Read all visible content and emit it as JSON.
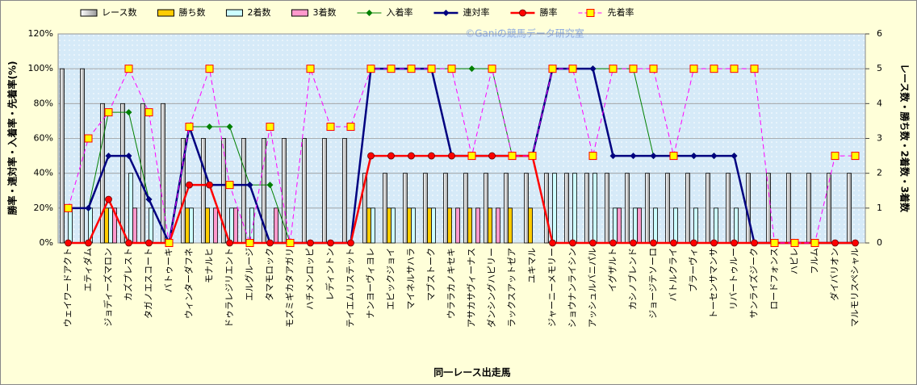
{
  "chart_data": {
    "type": "combo",
    "watermark": "©Ganiの競馬データ研究室",
    "xlabel": "同一レース出走馬",
    "ylabel": "勝率・連対率・入着率・先着率(%)",
    "y2label": "レース数・勝ち数・2着数・3着数",
    "categories": [
      "ウェイワードアクト",
      "エティダム",
      "ジョディーズマロン",
      "カズプレスト",
      "タガノエスコート",
      "バトゥーキ",
      "ウィンターダフネ",
      "モナルヒ",
      "ドゥラレジリエント",
      "エルグルージ",
      "タマモロック",
      "モズミギカタアガリ",
      "ハチメンロッピ",
      "レディントン",
      "テイエムリステット",
      "ナンヨーヴィヨレ",
      "エピックジョイ",
      "マイネルサハラ",
      "マブストーク",
      "ウララカノキセキ",
      "アサカサヴィーナス",
      "ダンシングハピリー",
      "ラックスアットゼア",
      "ユキマル",
      "ジャーニーメモリー",
      "ショウナンライシン",
      "アッシュルバニパル",
      "イグザルト",
      "カシノブレンド",
      "ジョージテソーロ",
      "バトルクライ",
      "ブラーヴィ",
      "トーセンサマンサ",
      "リバートゥルー",
      "サンライズジーク",
      "ロードフォンス",
      "ハピレ",
      "フルム",
      "ダイバリオン",
      "マルモリスペシャル"
    ],
    "ylim": [
      0,
      120
    ],
    "yticks": [
      {
        "value": 0,
        "label": "0%"
      },
      {
        "value": 20,
        "label": "20%"
      },
      {
        "value": 40,
        "label": "40%"
      },
      {
        "value": 60,
        "label": "60%"
      },
      {
        "value": 80,
        "label": "80%"
      },
      {
        "value": 100,
        "label": "100%"
      },
      {
        "value": 120,
        "label": "120%"
      }
    ],
    "y2lim": [
      0,
      6
    ],
    "y2ticks": [
      0,
      1,
      2,
      3,
      4,
      5,
      6
    ],
    "grid": true,
    "series": [
      {
        "name": "レース数",
        "kind": "bar",
        "axis": "y2",
        "color": "#ffffff",
        "values": [
          5,
          5,
          4,
          4,
          4,
          4,
          3,
          3,
          3,
          3,
          3,
          3,
          3,
          3,
          3,
          2,
          2,
          2,
          2,
          2,
          2,
          2,
          2,
          2,
          2,
          2,
          2,
          2,
          2,
          2,
          2,
          2,
          2,
          2,
          2,
          2,
          2,
          2,
          2,
          2
        ]
      },
      {
        "name": "勝ち数",
        "kind": "bar",
        "axis": "y2",
        "color": "#ffcc00",
        "values": [
          0,
          0,
          1,
          0,
          0,
          0,
          1,
          1,
          0,
          0,
          0,
          0,
          0,
          0,
          0,
          1,
          1,
          1,
          1,
          1,
          1,
          1,
          1,
          1,
          0,
          0,
          0,
          0,
          0,
          0,
          0,
          0,
          0,
          0,
          0,
          0,
          0,
          0,
          0,
          0
        ]
      },
      {
        "name": "2着数",
        "kind": "bar",
        "axis": "y2",
        "color": "#ccffff",
        "values": [
          1,
          1,
          1,
          2,
          1,
          0,
          1,
          0,
          1,
          1,
          0,
          0,
          0,
          0,
          0,
          1,
          1,
          1,
          1,
          0,
          0,
          0,
          0,
          0,
          2,
          2,
          2,
          1,
          1,
          1,
          1,
          1,
          1,
          1,
          0,
          0,
          0,
          0,
          0,
          0
        ]
      },
      {
        "name": "3着数",
        "kind": "bar",
        "axis": "y2",
        "color": "#ff99cc",
        "values": [
          0,
          0,
          1,
          1,
          0,
          0,
          0,
          1,
          1,
          0,
          1,
          0,
          0,
          0,
          0,
          0,
          0,
          0,
          0,
          1,
          1,
          1,
          0,
          0,
          0,
          0,
          0,
          1,
          1,
          0,
          0,
          0,
          0,
          0,
          0,
          0,
          0,
          0,
          0,
          0
        ]
      },
      {
        "name": "入着率",
        "kind": "line",
        "color": "#008000",
        "marker": "diamond",
        "width": 1,
        "values": [
          20,
          20,
          75,
          75,
          25,
          0,
          66.7,
          66.7,
          66.7,
          33.3,
          33.3,
          0,
          0,
          0,
          0,
          100,
          100,
          100,
          100,
          100,
          100,
          100,
          50,
          50,
          100,
          100,
          100,
          100,
          100,
          50,
          50,
          50,
          50,
          50,
          0,
          0,
          0,
          0,
          0,
          0
        ]
      },
      {
        "name": "連対率",
        "kind": "line",
        "color": "#000080",
        "marker": "diamond",
        "width": 2.5,
        "values": [
          20,
          20,
          50,
          50,
          25,
          0,
          66.7,
          33.3,
          33.3,
          33.3,
          0,
          0,
          0,
          0,
          0,
          100,
          100,
          100,
          100,
          50,
          50,
          50,
          50,
          50,
          100,
          100,
          100,
          50,
          50,
          50,
          50,
          50,
          50,
          50,
          0,
          0,
          0,
          0,
          0,
          0
        ]
      },
      {
        "name": "勝率",
        "kind": "line",
        "color": "#ff0000",
        "marker": "circle",
        "width": 2.5,
        "values": [
          0,
          0,
          25,
          0,
          0,
          0,
          33.3,
          33.3,
          0,
          0,
          0,
          0,
          0,
          0,
          0,
          50,
          50,
          50,
          50,
          50,
          50,
          50,
          50,
          50,
          0,
          0,
          0,
          0,
          0,
          0,
          0,
          0,
          0,
          0,
          0,
          0,
          0,
          0,
          0,
          0
        ]
      },
      {
        "name": "先着率",
        "kind": "line",
        "color": "#ff00ff",
        "marker": "square",
        "dash": true,
        "width": 1,
        "values": [
          20,
          60,
          75,
          100,
          75,
          0,
          66.7,
          100,
          33.3,
          0,
          66.7,
          0,
          100,
          66.7,
          66.7,
          100,
          100,
          100,
          100,
          100,
          50,
          100,
          50,
          50,
          100,
          100,
          50,
          100,
          100,
          100,
          50,
          100,
          100,
          100,
          100,
          0,
          0,
          0,
          50,
          50
        ]
      }
    ]
  }
}
